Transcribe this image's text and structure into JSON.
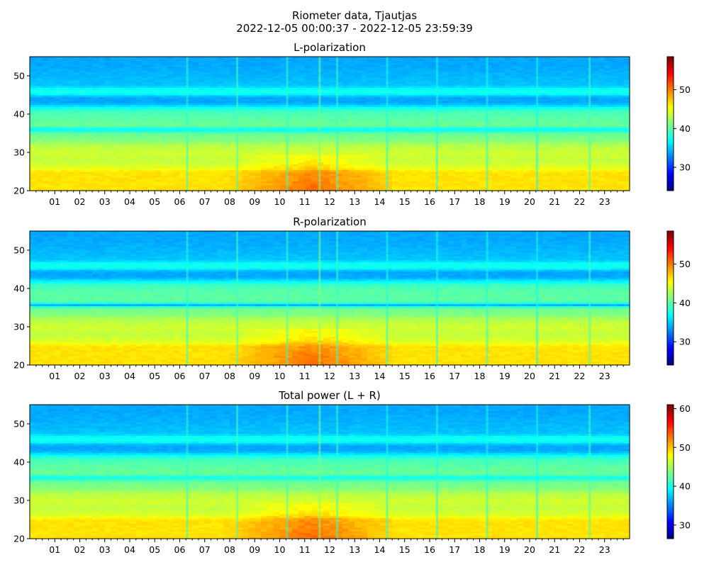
{
  "figure": {
    "title_line1": "Riometer data, Tjautjas",
    "title_line2": "2022-12-05 00:00:37 - 2022-12-05 23:59:39"
  },
  "colors": {
    "colormap": "jet",
    "background": "#ffffff"
  },
  "chart_data": [
    {
      "type": "heatmap",
      "title": "L-polarization",
      "x_unit": "hour of day",
      "xlim": [
        0,
        24
      ],
      "x_tick_labels": [
        "01",
        "02",
        "03",
        "04",
        "05",
        "06",
        "07",
        "08",
        "09",
        "10",
        "11",
        "12",
        "13",
        "14",
        "15",
        "16",
        "17",
        "18",
        "19",
        "20",
        "21",
        "22",
        "23"
      ],
      "x_minor_ticks_per_hour": 4,
      "ylim": [
        20,
        55
      ],
      "y_ticks": [
        20,
        30,
        40,
        50
      ],
      "colorbar": {
        "range": [
          24,
          58.5
        ],
        "ticks": [
          30,
          40,
          50
        ]
      },
      "profile_by_y": [
        {
          "y": 20,
          "v": 46.5
        },
        {
          "y": 22,
          "v": 46.5
        },
        {
          "y": 25,
          "v": 46.5
        },
        {
          "y": 26,
          "v": 44.5
        },
        {
          "y": 28,
          "v": 43.5
        },
        {
          "y": 30,
          "v": 44
        },
        {
          "y": 32,
          "v": 43
        },
        {
          "y": 33,
          "v": 41.5
        },
        {
          "y": 35,
          "v": 40.5
        },
        {
          "y": 36,
          "v": 36.5
        },
        {
          "y": 37,
          "v": 40.5
        },
        {
          "y": 39,
          "v": 40
        },
        {
          "y": 41,
          "v": 39
        },
        {
          "y": 42,
          "v": 36.5
        },
        {
          "y": 43,
          "v": 34
        },
        {
          "y": 44.5,
          "v": 34
        },
        {
          "y": 45.5,
          "v": 37.5
        },
        {
          "y": 46.5,
          "v": 37.5
        },
        {
          "y": 47.5,
          "v": 35
        },
        {
          "y": 50,
          "v": 34.5
        },
        {
          "y": 53,
          "v": 34
        },
        {
          "y": 55,
          "v": 34
        }
      ],
      "enhancement": {
        "hours": [
          7.5,
          14.5
        ],
        "peak_hour": 11.3,
        "y_range": [
          20,
          29.5
        ],
        "peak_delta": 4
      },
      "vertical_stripes": [
        {
          "hour": 6.3,
          "delta": 2.5
        },
        {
          "hour": 8.3,
          "delta": 3.5
        },
        {
          "hour": 10.3,
          "delta": 3
        },
        {
          "hour": 11.6,
          "delta": 5
        },
        {
          "hour": 12.3,
          "delta": 3
        },
        {
          "hour": 14.3,
          "delta": 2
        },
        {
          "hour": 16.3,
          "delta": 2
        },
        {
          "hour": 18.3,
          "delta": 2
        },
        {
          "hour": 20.3,
          "delta": 1.5
        },
        {
          "hour": 22.4,
          "delta": 3.5
        }
      ]
    },
    {
      "type": "heatmap",
      "title": "R-polarization",
      "x_unit": "hour of day",
      "xlim": [
        0,
        24
      ],
      "x_tick_labels": [
        "01",
        "02",
        "03",
        "04",
        "05",
        "06",
        "07",
        "08",
        "09",
        "10",
        "11",
        "12",
        "13",
        "14",
        "15",
        "16",
        "17",
        "18",
        "19",
        "20",
        "21",
        "22",
        "23"
      ],
      "x_minor_ticks_per_hour": 4,
      "ylim": [
        20,
        55
      ],
      "y_ticks": [
        20,
        30,
        40,
        50
      ],
      "colorbar": {
        "range": [
          24,
          58.5
        ],
        "ticks": [
          30,
          40,
          50
        ]
      },
      "profile_by_y": [
        {
          "y": 20,
          "v": 46.5
        },
        {
          "y": 22,
          "v": 46.5
        },
        {
          "y": 25,
          "v": 46.5
        },
        {
          "y": 26,
          "v": 44.5
        },
        {
          "y": 28,
          "v": 43.5
        },
        {
          "y": 30,
          "v": 44
        },
        {
          "y": 32,
          "v": 43
        },
        {
          "y": 33,
          "v": 41.5
        },
        {
          "y": 35,
          "v": 40.5
        },
        {
          "y": 35.8,
          "v": 34
        },
        {
          "y": 36.5,
          "v": 40
        },
        {
          "y": 39,
          "v": 40
        },
        {
          "y": 41,
          "v": 39
        },
        {
          "y": 42,
          "v": 36.5
        },
        {
          "y": 43,
          "v": 34
        },
        {
          "y": 44.5,
          "v": 34
        },
        {
          "y": 45.5,
          "v": 37.5
        },
        {
          "y": 46.5,
          "v": 37.5
        },
        {
          "y": 47.5,
          "v": 35
        },
        {
          "y": 50,
          "v": 34.5
        },
        {
          "y": 53,
          "v": 34
        },
        {
          "y": 55,
          "v": 34
        }
      ],
      "enhancement": {
        "hours": [
          7.5,
          14.5
        ],
        "peak_hour": 11.3,
        "y_range": [
          20,
          29.5
        ],
        "peak_delta": 4
      },
      "vertical_stripes": [
        {
          "hour": 6.3,
          "delta": 2.5
        },
        {
          "hour": 8.3,
          "delta": 3.5
        },
        {
          "hour": 10.3,
          "delta": 3
        },
        {
          "hour": 11.6,
          "delta": 6
        },
        {
          "hour": 12.3,
          "delta": 3
        },
        {
          "hour": 14.3,
          "delta": 2
        },
        {
          "hour": 16.3,
          "delta": 2
        },
        {
          "hour": 18.3,
          "delta": 2
        },
        {
          "hour": 20.3,
          "delta": 1.5
        },
        {
          "hour": 22.4,
          "delta": 3.5
        }
      ]
    },
    {
      "type": "heatmap",
      "title": "Total power (L + R)",
      "x_unit": "hour of day",
      "xlim": [
        0,
        24
      ],
      "x_tick_labels": [
        "01",
        "02",
        "03",
        "04",
        "05",
        "06",
        "07",
        "08",
        "09",
        "10",
        "11",
        "12",
        "13",
        "14",
        "15",
        "16",
        "17",
        "18",
        "19",
        "20",
        "21",
        "22",
        "23"
      ],
      "x_minor_ticks_per_hour": 4,
      "ylim": [
        20,
        55
      ],
      "y_ticks": [
        20,
        30,
        40,
        50
      ],
      "colorbar": {
        "range": [
          26.5,
          61
        ],
        "ticks": [
          30,
          40,
          50,
          60
        ]
      },
      "profile_by_y": [
        {
          "y": 20,
          "v": 49
        },
        {
          "y": 22,
          "v": 49
        },
        {
          "y": 25,
          "v": 49
        },
        {
          "y": 26,
          "v": 47
        },
        {
          "y": 28,
          "v": 46
        },
        {
          "y": 30,
          "v": 46.5
        },
        {
          "y": 32,
          "v": 45.5
        },
        {
          "y": 33,
          "v": 44
        },
        {
          "y": 35,
          "v": 43
        },
        {
          "y": 36,
          "v": 39.5
        },
        {
          "y": 37,
          "v": 43
        },
        {
          "y": 39,
          "v": 42.5
        },
        {
          "y": 41,
          "v": 41.5
        },
        {
          "y": 42,
          "v": 39
        },
        {
          "y": 43,
          "v": 36.5
        },
        {
          "y": 44.5,
          "v": 36.5
        },
        {
          "y": 45.5,
          "v": 40
        },
        {
          "y": 46.5,
          "v": 40
        },
        {
          "y": 47.5,
          "v": 37.5
        },
        {
          "y": 50,
          "v": 37
        },
        {
          "y": 53,
          "v": 36.5
        },
        {
          "y": 55,
          "v": 36.5
        }
      ],
      "enhancement": {
        "hours": [
          7.5,
          14.5
        ],
        "peak_hour": 11.3,
        "y_range": [
          20,
          29.5
        ],
        "peak_delta": 4
      },
      "vertical_stripes": [
        {
          "hour": 6.3,
          "delta": 2.5
        },
        {
          "hour": 8.3,
          "delta": 3.5
        },
        {
          "hour": 10.3,
          "delta": 3
        },
        {
          "hour": 11.6,
          "delta": 5.5
        },
        {
          "hour": 12.3,
          "delta": 3
        },
        {
          "hour": 14.3,
          "delta": 2
        },
        {
          "hour": 16.3,
          "delta": 2
        },
        {
          "hour": 18.3,
          "delta": 2
        },
        {
          "hour": 20.3,
          "delta": 1.5
        },
        {
          "hour": 22.4,
          "delta": 3.5
        }
      ]
    }
  ]
}
